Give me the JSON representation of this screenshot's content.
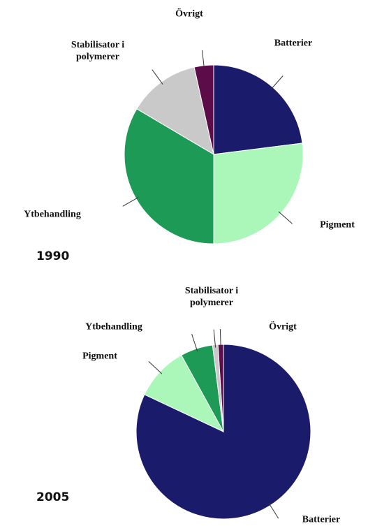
{
  "chart_data": [
    {
      "type": "pie",
      "title": "1990",
      "categories": [
        "Batterier",
        "Pigment",
        "Ytbehandling",
        "Stabilisator i polymerer",
        "Övrigt"
      ],
      "values": [
        23,
        27,
        33.5,
        13,
        3.5
      ],
      "colors": [
        "#1b1b6b",
        "#aaf7b9",
        "#1e9a57",
        "#c9c9c9",
        "#5c0c48"
      ]
    },
    {
      "type": "pie",
      "title": "2005",
      "categories": [
        "Batterier",
        "Pigment",
        "Ytbehandling",
        "Stabilisator i polymerer",
        "Övrigt"
      ],
      "values": [
        82,
        10,
        6,
        1,
        1
      ],
      "colors": [
        "#1b1b6b",
        "#aaf7b9",
        "#1e9a57",
        "#c9c9c9",
        "#5c0c48"
      ]
    }
  ]
}
